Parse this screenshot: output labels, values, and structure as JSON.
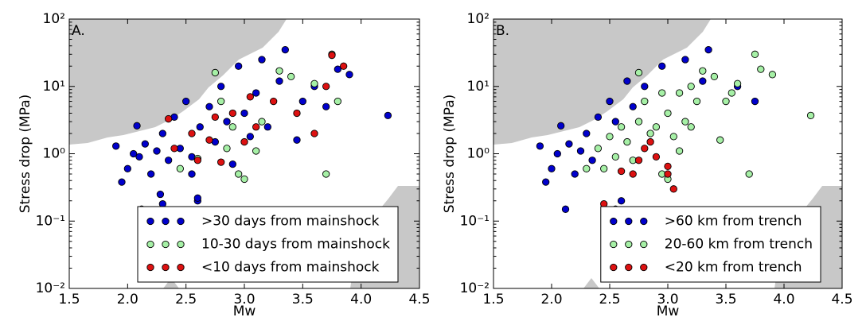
{
  "chart_data": [
    {
      "type": "scatter",
      "annotation": "A.",
      "xlabel": "Mw",
      "ylabel": "Stress drop (MPa)",
      "xlim": [
        1.5,
        4.5
      ],
      "ylim": [
        0.01,
        100
      ],
      "log_y": true,
      "legend": "lower right",
      "xticks": [
        1.5,
        {
          "value": 2,
          "label": "2.0"
        },
        2.5,
        {
          "value": 3,
          "label": "3.0"
        },
        3.5,
        {
          "value": 4,
          "label": "4.0"
        },
        4.5
      ],
      "yticks": [
        {
          "value": 0.01,
          "label": "10⁻²"
        },
        {
          "value": 0.1,
          "label": "10⁻¹"
        },
        {
          "value": 1,
          "label": "10⁰"
        },
        {
          "value": 10,
          "label": "10¹"
        },
        {
          "value": 100,
          "label": "10²"
        }
      ],
      "series": [
        {
          "name": ">30 days from mainshock",
          "color": "#0000cc",
          "x": [
            1.9,
            1.95,
            2.0,
            2.05,
            2.08,
            2.1,
            2.12,
            2.15,
            2.2,
            2.25,
            2.28,
            2.3,
            2.35,
            2.4,
            2.45,
            2.5,
            2.55,
            2.6,
            2.62,
            2.65,
            2.7,
            2.75,
            2.8,
            2.85,
            2.9,
            2.95,
            3.0,
            3.05,
            3.1,
            3.15,
            3.2,
            3.3,
            3.35,
            3.45,
            3.5,
            3.6,
            3.7,
            3.8,
            3.9,
            4.23,
            2.3,
            2.55,
            2.6
          ],
          "values": [
            1.3,
            0.38,
            0.6,
            1.0,
            2.6,
            0.9,
            0.15,
            1.4,
            0.5,
            1.1,
            0.25,
            2.0,
            0.8,
            3.5,
            1.2,
            6.0,
            0.9,
            0.2,
            2.5,
            0.13,
            5.0,
            1.5,
            10,
            3.0,
            0.7,
            20,
            4.0,
            1.8,
            8.0,
            25,
            2.5,
            12,
            35,
            1.6,
            6.0,
            10,
            5.0,
            18,
            15,
            3.7,
            0.18,
            0.5,
            0.22
          ]
        },
        {
          "name": "10-30 days from mainshock",
          "color": "#a6f0a6",
          "x": [
            2.45,
            2.6,
            2.75,
            2.8,
            2.9,
            2.95,
            3.0,
            3.1,
            3.15,
            3.3,
            3.4,
            3.6,
            3.7,
            3.75,
            3.8,
            2.85
          ],
          "values": [
            0.6,
            0.85,
            16,
            6,
            2.5,
            0.5,
            0.42,
            1.1,
            3.0,
            17,
            14,
            11,
            0.5,
            30,
            6,
            1.2
          ]
        },
        {
          "name": "<10 days from mainshock",
          "color": "#dd1111",
          "x": [
            2.35,
            2.4,
            2.55,
            2.6,
            2.7,
            2.75,
            2.8,
            2.9,
            3.0,
            3.05,
            3.1,
            3.25,
            3.45,
            3.7,
            3.75,
            3.85,
            3.6
          ],
          "values": [
            3.3,
            1.2,
            2.0,
            0.8,
            1.6,
            3.5,
            0.75,
            4.0,
            1.5,
            7.0,
            2.5,
            6.0,
            4.0,
            10,
            29,
            20,
            2.0
          ]
        }
      ]
    },
    {
      "type": "scatter",
      "annotation": "B.",
      "xlabel": "Mw",
      "ylabel": "Stress drop (MPa)",
      "xlim": [
        1.5,
        4.5
      ],
      "ylim": [
        0.01,
        100
      ],
      "log_y": true,
      "legend": "lower right",
      "xticks": [
        1.5,
        {
          "value": 2,
          "label": "2.0"
        },
        2.5,
        {
          "value": 3,
          "label": "3.0"
        },
        3.5,
        {
          "value": 4,
          "label": "4.0"
        },
        4.5
      ],
      "yticks": [
        {
          "value": 0.01,
          "label": "10⁻²"
        },
        {
          "value": 0.1,
          "label": "10⁻¹"
        },
        {
          "value": 1,
          "label": "10⁰"
        },
        {
          "value": 10,
          "label": "10¹"
        },
        {
          "value": 100,
          "label": "10²"
        }
      ],
      "series": [
        {
          "name": ">60 km from trench",
          "color": "#0000cc",
          "x": [
            1.9,
            1.95,
            2.0,
            2.05,
            2.08,
            2.12,
            2.15,
            2.2,
            2.25,
            2.3,
            2.35,
            2.4,
            2.5,
            2.6,
            2.7,
            2.8,
            2.95,
            3.15,
            3.3,
            3.35,
            3.6,
            3.75,
            2.55,
            2.65
          ],
          "values": [
            1.3,
            0.38,
            0.6,
            1.0,
            2.6,
            0.15,
            1.4,
            0.5,
            1.1,
            2.0,
            0.8,
            3.5,
            6.0,
            0.2,
            5.0,
            10,
            20,
            25,
            12,
            35,
            10,
            6.0,
            3.0,
            12
          ]
        },
        {
          "name": "20-60 km from trench",
          "color": "#a6f0a6",
          "x": [
            2.3,
            2.4,
            2.45,
            2.5,
            2.55,
            2.6,
            2.65,
            2.7,
            2.75,
            2.75,
            2.8,
            2.85,
            2.9,
            2.95,
            2.95,
            3.0,
            3.0,
            3.05,
            3.1,
            3.1,
            3.15,
            3.2,
            3.25,
            3.3,
            3.4,
            3.45,
            3.5,
            3.6,
            3.7,
            3.75,
            3.8,
            3.9,
            4.23,
            3.55,
            3.2
          ],
          "values": [
            0.6,
            1.2,
            0.6,
            1.8,
            0.9,
            2.5,
            1.5,
            0.8,
            16,
            3.0,
            6,
            2.0,
            2.5,
            0.5,
            8,
            4.0,
            0.42,
            1.8,
            1.1,
            8,
            3.0,
            2.5,
            6,
            17,
            14,
            1.6,
            6,
            11,
            0.5,
            30,
            18,
            15,
            3.7,
            8,
            10
          ]
        },
        {
          "name": "<20 km from trench",
          "color": "#dd1111",
          "x": [
            2.45,
            2.5,
            2.55,
            2.6,
            2.7,
            2.75,
            2.85,
            2.9,
            3.0,
            3.05,
            2.8,
            3.0
          ],
          "values": [
            0.18,
            0.07,
            0.15,
            0.55,
            0.5,
            0.8,
            1.5,
            0.9,
            0.5,
            0.3,
            1.2,
            0.65
          ]
        }
      ]
    }
  ]
}
